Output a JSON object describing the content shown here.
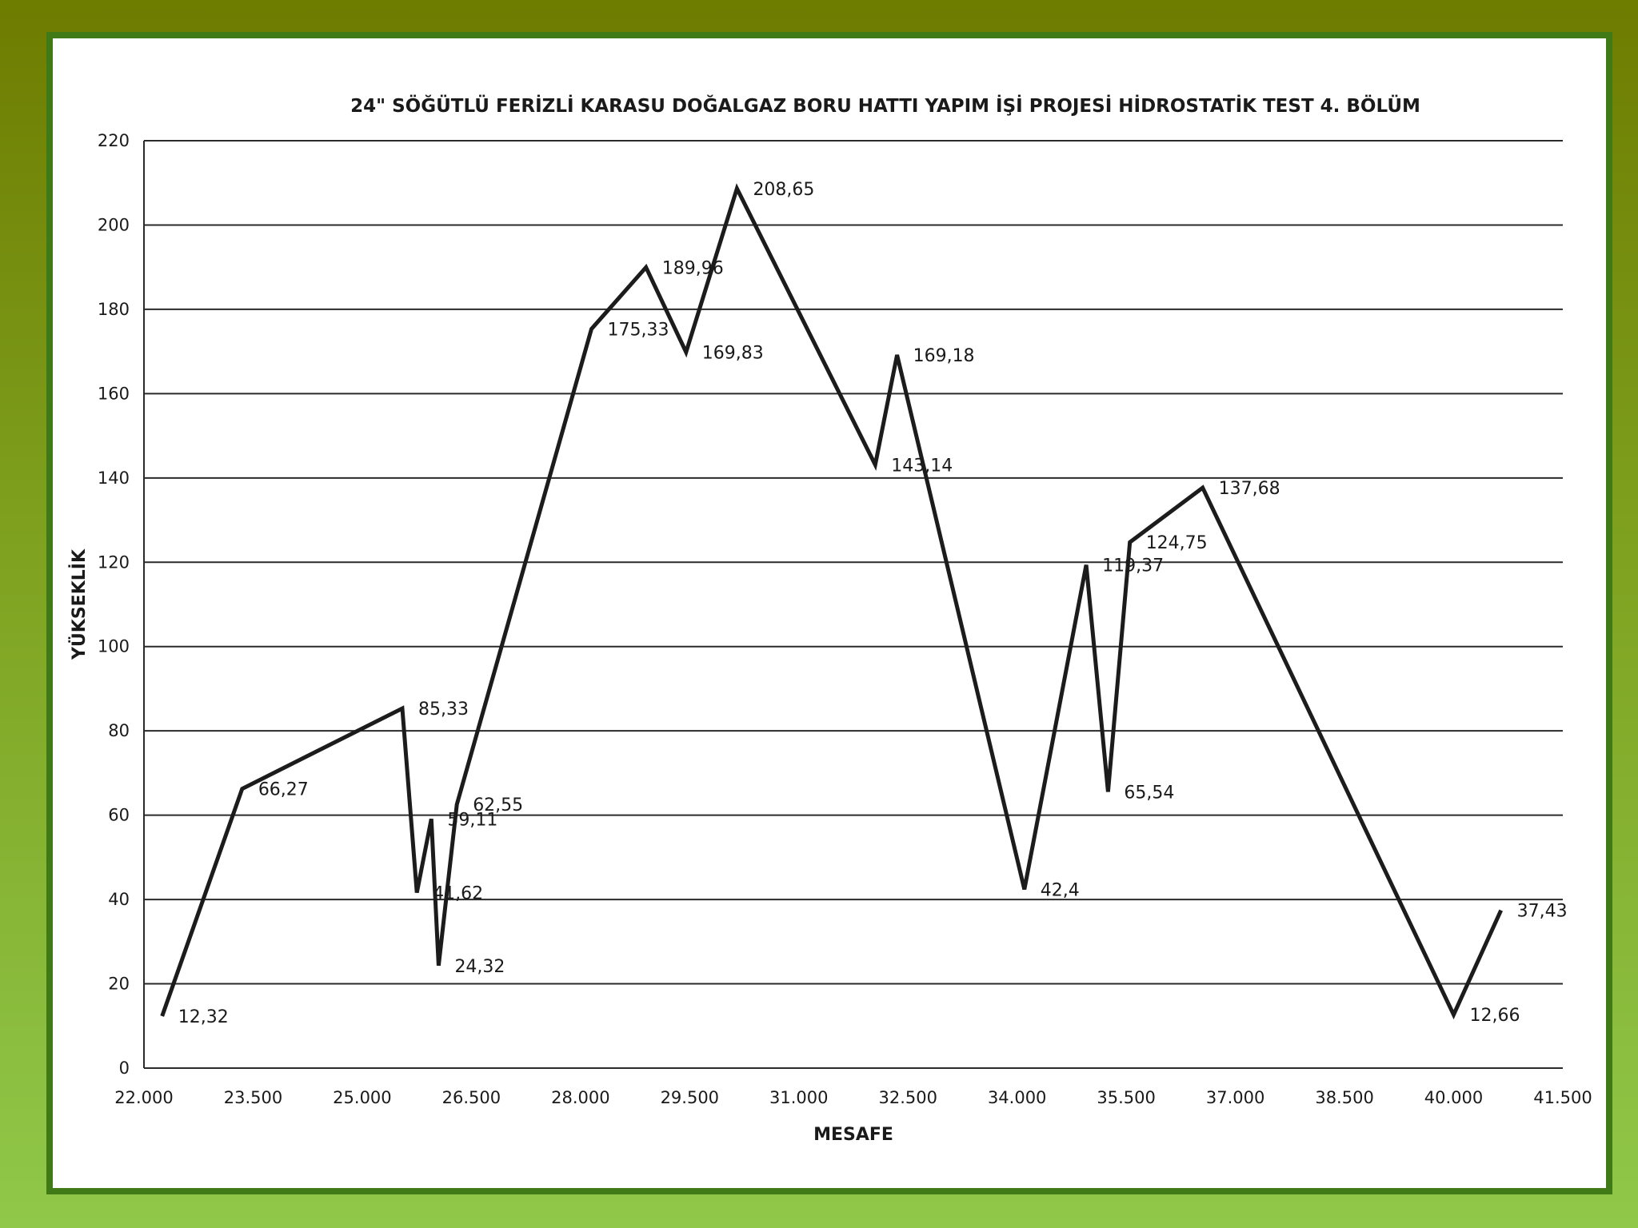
{
  "chart_data": {
    "type": "line",
    "title": "24\" SÖĞÜTLÜ FERİZLİ KARASU DOĞALGAZ BORU HATTI YAPIM İŞİ PROJESİ HİDROSTATİK TEST 4. BÖLÜM",
    "xlabel": "MESAFE",
    "ylabel": "YÜKSEKLİK",
    "xlim": [
      22000,
      41500
    ],
    "ylim": [
      0,
      220
    ],
    "x_ticks": [
      22000,
      23500,
      25000,
      26500,
      28000,
      29500,
      31000,
      32500,
      34000,
      35500,
      37000,
      38500,
      40000,
      41500
    ],
    "x_tick_labels": [
      "22.000",
      "23.500",
      "25.000",
      "26.500",
      "28.000",
      "29.500",
      "31.000",
      "32.500",
      "34.000",
      "35.500",
      "37.000",
      "38.500",
      "40.000",
      "41.500"
    ],
    "y_ticks": [
      0,
      20,
      40,
      60,
      80,
      100,
      120,
      140,
      160,
      180,
      200,
      220
    ],
    "y_tick_labels": [
      "0",
      "20",
      "40",
      "60",
      "80",
      "100",
      "120",
      "140",
      "160",
      "180",
      "200",
      "220"
    ],
    "grid": true,
    "legend": "none",
    "series": [
      {
        "name": "YÜKSEKLİK",
        "points": [
          {
            "x": 22250,
            "y": 12.32,
            "label": "12,32"
          },
          {
            "x": 23350,
            "y": 66.27,
            "label": "66,27"
          },
          {
            "x": 25550,
            "y": 85.33,
            "label": "85,33"
          },
          {
            "x": 25750,
            "y": 41.62,
            "label": "41,62"
          },
          {
            "x": 25950,
            "y": 59.11,
            "label": "59,11"
          },
          {
            "x": 26050,
            "y": 24.32,
            "label": "24,32"
          },
          {
            "x": 26300,
            "y": 62.55,
            "label": "62,55"
          },
          {
            "x": 28150,
            "y": 175.33,
            "label": "175,33"
          },
          {
            "x": 28900,
            "y": 189.96,
            "label": "189,96"
          },
          {
            "x": 29450,
            "y": 169.83,
            "label": "169,83"
          },
          {
            "x": 30150,
            "y": 208.65,
            "label": "208,65"
          },
          {
            "x": 32050,
            "y": 143.14,
            "label": "143,14"
          },
          {
            "x": 32350,
            "y": 169.18,
            "label": "169,18"
          },
          {
            "x": 34100,
            "y": 42.4,
            "label": "42,4"
          },
          {
            "x": 34950,
            "y": 119.37,
            "label": "119,37"
          },
          {
            "x": 35250,
            "y": 65.54,
            "label": "65,54"
          },
          {
            "x": 35550,
            "y": 124.75,
            "label": "124,75"
          },
          {
            "x": 36550,
            "y": 137.68,
            "label": "137,68"
          },
          {
            "x": 40000,
            "y": 12.66,
            "label": "12,66"
          },
          {
            "x": 40650,
            "y": 37.43,
            "label": "37,43"
          }
        ]
      }
    ]
  }
}
